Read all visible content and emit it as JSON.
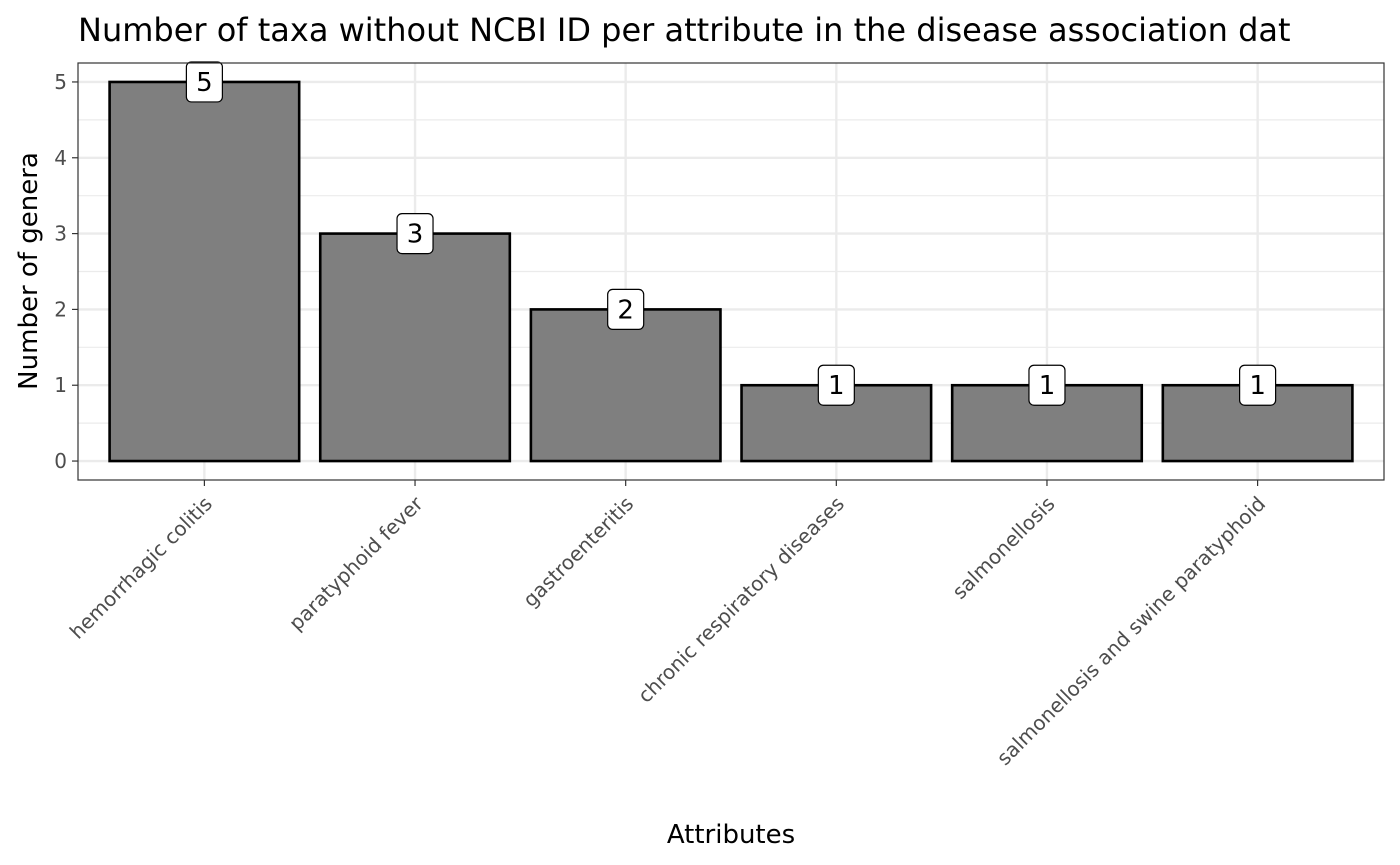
{
  "chart_data": {
    "type": "bar",
    "title": "Number of taxa without NCBI ID per attribute in the disease association dat",
    "xlabel": "Attributes",
    "ylabel": "Number of genera",
    "categories": [
      "hemorrhagic colitis",
      "paratyphoid fever",
      "gastroenteritis",
      "chronic respiratory diseases",
      "salmonellosis",
      "salmonellosis and swine paratyphoid"
    ],
    "values": [
      5,
      3,
      2,
      1,
      1,
      1
    ],
    "data_labels": [
      "5",
      "3",
      "2",
      "1",
      "1",
      "1"
    ],
    "yticks": [
      "0",
      "1",
      "2",
      "3",
      "4",
      "5"
    ],
    "ylim": [
      -0.25,
      5.25
    ],
    "grid": true,
    "legend": "none",
    "colors": {
      "bar_fill": "#7f7f7f",
      "bar_stroke": "#000000",
      "grid": "#ebebeb",
      "panel_border": "#333333",
      "label_fill": "#ffffff"
    }
  }
}
